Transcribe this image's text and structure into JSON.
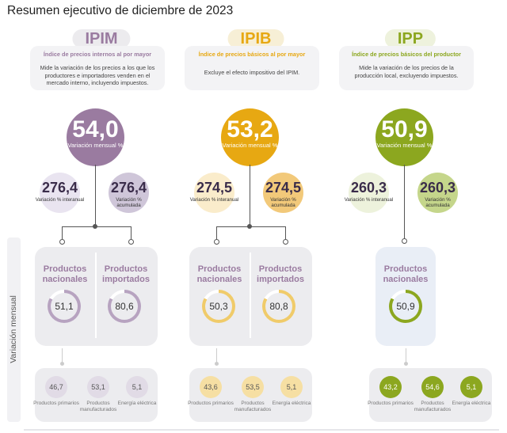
{
  "page": {
    "title": "Resumen ejecutivo de diciembre de 2023",
    "side_label": "Variación mensual"
  },
  "colors": {
    "ipim": "#9a7ba0",
    "ipib": "#e7a812",
    "ipp": "#8ca71f"
  },
  "indices": [
    {
      "code": "IPIM",
      "subtitle": "Índice de precios internos al por mayor",
      "description": "Mide la variación de los precios a los que los productores e importadores venden en el mercado interno, incluyendo impuestos.",
      "monthly": {
        "value": "54,0",
        "label": "Variación mensual %"
      },
      "interannual": {
        "value": "276,4",
        "label": "Variación % interanual"
      },
      "cumulative": {
        "value": "276,4",
        "label": "Variación % acumulada"
      },
      "products": [
        {
          "label": "Productos nacionales",
          "value": "51,1"
        },
        {
          "label": "Productos importados",
          "value": "80,6"
        }
      ],
      "subcategories": [
        {
          "value": "46,7",
          "label": "Productos primarios"
        },
        {
          "value": "53,1",
          "label": "Productos manufacturados"
        },
        {
          "value": "5,1",
          "label": "Energía eléctrica"
        }
      ]
    },
    {
      "code": "IPIB",
      "subtitle": "Índice de precios básicos al por mayor",
      "description": "Excluye el efecto impositivo del IPIM.",
      "monthly": {
        "value": "53,2",
        "label": "Variación mensual %"
      },
      "interannual": {
        "value": "274,5",
        "label": "Variación % interanual"
      },
      "cumulative": {
        "value": "274,5",
        "label": "Variación % acumulada"
      },
      "products": [
        {
          "label": "Productos nacionales",
          "value": "50,3"
        },
        {
          "label": "Productos importados",
          "value": "80,8"
        }
      ],
      "subcategories": [
        {
          "value": "43,6",
          "label": "Productos primarios"
        },
        {
          "value": "53,5",
          "label": "Productos manufacturados"
        },
        {
          "value": "5,1",
          "label": "Energía eléctrica"
        }
      ]
    },
    {
      "code": "IPP",
      "subtitle": "Índice de precios básicos del productor",
      "description": "Mide la variación de los precios de la producción local, excluyendo impuestos.",
      "monthly": {
        "value": "50,9",
        "label": "Variación mensual %"
      },
      "interannual": {
        "value": "260,3",
        "label": "Variación % interanual"
      },
      "cumulative": {
        "value": "260,3",
        "label": "Variación % acumulada"
      },
      "products": [
        {
          "label": "Productos nacionales",
          "value": "50,9"
        }
      ],
      "subcategories": [
        {
          "value": "43,2",
          "label": "Productos primarios"
        },
        {
          "value": "54,6",
          "label": "Productos manufacturados"
        },
        {
          "value": "5,1",
          "label": "Energía eléctrica"
        }
      ]
    }
  ]
}
